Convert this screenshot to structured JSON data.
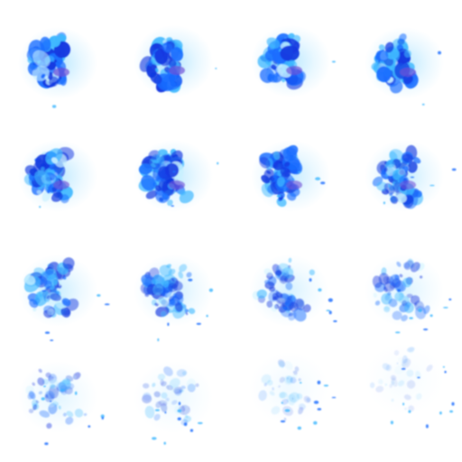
{
  "sprite_sheet": {
    "grid": {
      "columns": 4,
      "rows": 4
    },
    "colors": {
      "background": "#ffffff",
      "glow": "#7fd4ff",
      "light": "#3fb8ff",
      "mid": "#1a6dff",
      "deep": "#1238e0",
      "core": "#6f4fd6",
      "highlight": "#c8f0ff"
    },
    "frames": [
      {
        "index": 1,
        "intensity": 1.0,
        "spread": 0.05
      },
      {
        "index": 2,
        "intensity": 0.98,
        "spread": 0.08
      },
      {
        "index": 3,
        "intensity": 0.96,
        "spread": 0.12
      },
      {
        "index": 4,
        "intensity": 0.95,
        "spread": 0.15
      },
      {
        "index": 5,
        "intensity": 0.92,
        "spread": 0.2
      },
      {
        "index": 6,
        "intensity": 0.9,
        "spread": 0.26
      },
      {
        "index": 7,
        "intensity": 0.86,
        "spread": 0.32
      },
      {
        "index": 8,
        "intensity": 0.82,
        "spread": 0.38
      },
      {
        "index": 9,
        "intensity": 0.74,
        "spread": 0.45
      },
      {
        "index": 10,
        "intensity": 0.66,
        "spread": 0.52
      },
      {
        "index": 11,
        "intensity": 0.58,
        "spread": 0.6
      },
      {
        "index": 12,
        "intensity": 0.5,
        "spread": 0.68
      },
      {
        "index": 13,
        "intensity": 0.42,
        "spread": 0.75
      },
      {
        "index": 14,
        "intensity": 0.3,
        "spread": 0.82
      },
      {
        "index": 15,
        "intensity": 0.22,
        "spread": 0.88
      },
      {
        "index": 16,
        "intensity": 0.14,
        "spread": 0.95
      }
    ]
  }
}
